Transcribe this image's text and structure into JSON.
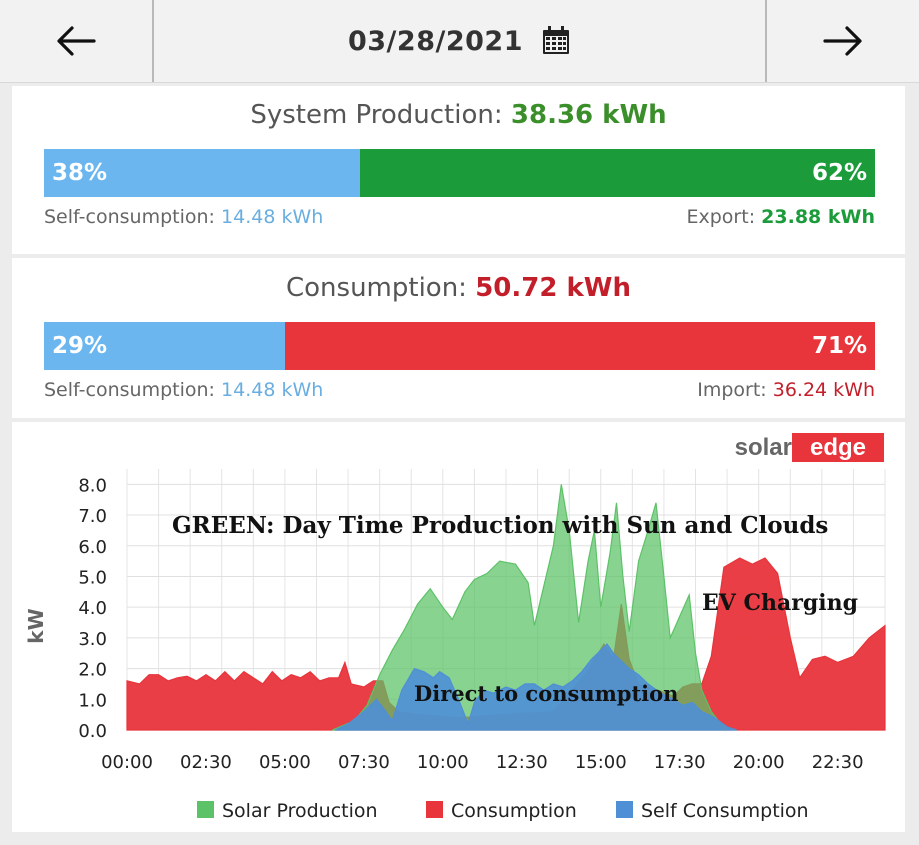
{
  "header": {
    "date": "03/28/2021",
    "prev_icon": "arrow-left-icon",
    "next_icon": "arrow-right-icon",
    "calendar_icon": "calendar-icon"
  },
  "production": {
    "title": "System Production:",
    "value": "38.36 kWh",
    "self_pct": "38%",
    "export_pct": "62%",
    "self_fraction": 0.38,
    "self_label": "Self-consumption:",
    "self_value": "14.48 kWh",
    "export_label": "Export:",
    "export_value": "23.88 kWh"
  },
  "consumption": {
    "title": "Consumption:",
    "value": "50.72 kWh",
    "self_pct": "29%",
    "import_pct": "71%",
    "self_fraction": 0.29,
    "self_label": "Self-consumption:",
    "self_value": "14.48 kWh",
    "import_label": "Import:",
    "import_value": "36.24 kWh"
  },
  "colors": {
    "blue": "#6cb6ef",
    "green": "#1b9b3a",
    "red": "#e8343b",
    "green_text": "#3b8f2b",
    "red_text": "#c21f2a",
    "blue_text": "#6aaee0"
  },
  "brand": {
    "solar": "solar",
    "edge": "edge"
  },
  "chart_data": {
    "type": "area",
    "ylabel": "kW",
    "ylim": [
      0,
      8.5
    ],
    "y_ticks": [
      "0.0",
      "1.0",
      "2.0",
      "3.0",
      "4.0",
      "5.0",
      "6.0",
      "7.0",
      "8.0"
    ],
    "x_range": [
      "00:00",
      "24:00"
    ],
    "x_ticks": [
      "00:00",
      "02:30",
      "05:00",
      "07:30",
      "10:00",
      "12:30",
      "15:00",
      "17:30",
      "20:00",
      "22:30"
    ],
    "grid": true,
    "legend_position": "bottom",
    "annotations": {
      "green": "GREEN: Day Time Production with Sun and Clouds",
      "ev": "EV Charging",
      "direct": "Direct to consumption"
    },
    "series": [
      {
        "name": "Consumption",
        "color": "#e8343b",
        "points": [
          [
            0,
            1.6
          ],
          [
            0.4,
            1.5
          ],
          [
            0.7,
            1.8
          ],
          [
            1.0,
            1.8
          ],
          [
            1.3,
            1.6
          ],
          [
            1.6,
            1.7
          ],
          [
            1.9,
            1.75
          ],
          [
            2.2,
            1.6
          ],
          [
            2.5,
            1.8
          ],
          [
            2.8,
            1.6
          ],
          [
            3.1,
            1.9
          ],
          [
            3.4,
            1.6
          ],
          [
            3.7,
            1.9
          ],
          [
            4.0,
            1.7
          ],
          [
            4.3,
            1.5
          ],
          [
            4.6,
            1.9
          ],
          [
            4.9,
            1.6
          ],
          [
            5.2,
            1.8
          ],
          [
            5.5,
            1.7
          ],
          [
            5.8,
            1.9
          ],
          [
            6.1,
            1.6
          ],
          [
            6.4,
            1.7
          ],
          [
            6.7,
            1.7
          ],
          [
            6.9,
            2.2
          ],
          [
            7.1,
            1.5
          ],
          [
            7.5,
            1.4
          ],
          [
            7.8,
            1.6
          ],
          [
            8.1,
            1.6
          ],
          [
            8.3,
            0.9
          ],
          [
            8.6,
            0.6
          ],
          [
            9.2,
            0.5
          ],
          [
            10.5,
            0.4
          ],
          [
            12.0,
            0.5
          ],
          [
            13.5,
            0.6
          ],
          [
            14.5,
            1.8
          ],
          [
            15.1,
            2.8
          ],
          [
            15.4,
            2.3
          ],
          [
            15.65,
            4.1
          ],
          [
            15.9,
            2.3
          ],
          [
            16.2,
            1.5
          ],
          [
            16.8,
            1.3
          ],
          [
            17.3,
            1.1
          ],
          [
            17.6,
            1.4
          ],
          [
            17.9,
            1.5
          ],
          [
            18.2,
            1.5
          ],
          [
            18.5,
            2.4
          ],
          [
            18.9,
            5.3
          ],
          [
            19.4,
            5.6
          ],
          [
            19.8,
            5.4
          ],
          [
            20.2,
            5.6
          ],
          [
            20.6,
            5.1
          ],
          [
            21.0,
            3.0
          ],
          [
            21.3,
            1.7
          ],
          [
            21.7,
            2.3
          ],
          [
            22.1,
            2.4
          ],
          [
            22.5,
            2.2
          ],
          [
            23.0,
            2.4
          ],
          [
            23.5,
            3.0
          ],
          [
            24.0,
            3.4
          ]
        ]
      },
      {
        "name": "Solar Production",
        "color": "#5cc267",
        "points": [
          [
            6.5,
            0
          ],
          [
            7.2,
            0.3
          ],
          [
            7.6,
            0.8
          ],
          [
            8.0,
            1.8
          ],
          [
            8.4,
            2.6
          ],
          [
            8.8,
            3.3
          ],
          [
            9.2,
            4.1
          ],
          [
            9.6,
            4.6
          ],
          [
            10.0,
            4.0
          ],
          [
            10.3,
            3.6
          ],
          [
            10.7,
            4.5
          ],
          [
            11.0,
            4.9
          ],
          [
            11.4,
            5.1
          ],
          [
            11.8,
            5.5
          ],
          [
            12.3,
            5.4
          ],
          [
            12.7,
            4.8
          ],
          [
            12.9,
            3.4
          ],
          [
            13.2,
            4.7
          ],
          [
            13.5,
            6.0
          ],
          [
            13.75,
            8.0
          ],
          [
            14.0,
            6.5
          ],
          [
            14.3,
            3.5
          ],
          [
            14.6,
            5.5
          ],
          [
            14.8,
            6.5
          ],
          [
            15.0,
            4.0
          ],
          [
            15.3,
            5.8
          ],
          [
            15.5,
            7.4
          ],
          [
            15.7,
            5.0
          ],
          [
            15.9,
            3.2
          ],
          [
            16.2,
            5.5
          ],
          [
            16.5,
            6.5
          ],
          [
            16.75,
            7.4
          ],
          [
            17.0,
            5.0
          ],
          [
            17.2,
            3.0
          ],
          [
            17.5,
            3.7
          ],
          [
            17.8,
            4.4
          ],
          [
            18.0,
            2.5
          ],
          [
            18.2,
            1.3
          ],
          [
            18.5,
            0.6
          ],
          [
            18.8,
            0.2
          ],
          [
            19.1,
            0
          ]
        ]
      },
      {
        "name": "Self Consumption",
        "color": "#4f8fd6",
        "points": [
          [
            6.6,
            0
          ],
          [
            7.0,
            0.2
          ],
          [
            7.5,
            0.6
          ],
          [
            7.9,
            1.0
          ],
          [
            8.2,
            0.6
          ],
          [
            8.4,
            0.3
          ],
          [
            8.7,
            1.3
          ],
          [
            9.1,
            2.0
          ],
          [
            9.4,
            1.9
          ],
          [
            9.7,
            1.7
          ],
          [
            9.9,
            1.9
          ],
          [
            10.2,
            1.7
          ],
          [
            10.5,
            1.0
          ],
          [
            10.8,
            0.2
          ],
          [
            11.0,
            0.9
          ],
          [
            11.3,
            1.3
          ],
          [
            11.6,
            1.2
          ],
          [
            12.0,
            1.4
          ],
          [
            12.3,
            1.3
          ],
          [
            12.6,
            1.5
          ],
          [
            12.9,
            1.5
          ],
          [
            13.2,
            1.3
          ],
          [
            13.5,
            1.5
          ],
          [
            13.8,
            1.4
          ],
          [
            14.1,
            1.6
          ],
          [
            14.4,
            1.9
          ],
          [
            14.7,
            2.3
          ],
          [
            15.0,
            2.6
          ],
          [
            15.2,
            2.8
          ],
          [
            15.4,
            2.5
          ],
          [
            15.6,
            2.3
          ],
          [
            15.9,
            2.0
          ],
          [
            16.2,
            1.8
          ],
          [
            16.5,
            1.5
          ],
          [
            16.9,
            1.2
          ],
          [
            17.3,
            1.0
          ],
          [
            17.6,
            0.8
          ],
          [
            17.9,
            0.9
          ],
          [
            18.2,
            0.6
          ],
          [
            18.6,
            0.4
          ],
          [
            19.0,
            0.1
          ],
          [
            19.3,
            0
          ]
        ]
      }
    ]
  }
}
